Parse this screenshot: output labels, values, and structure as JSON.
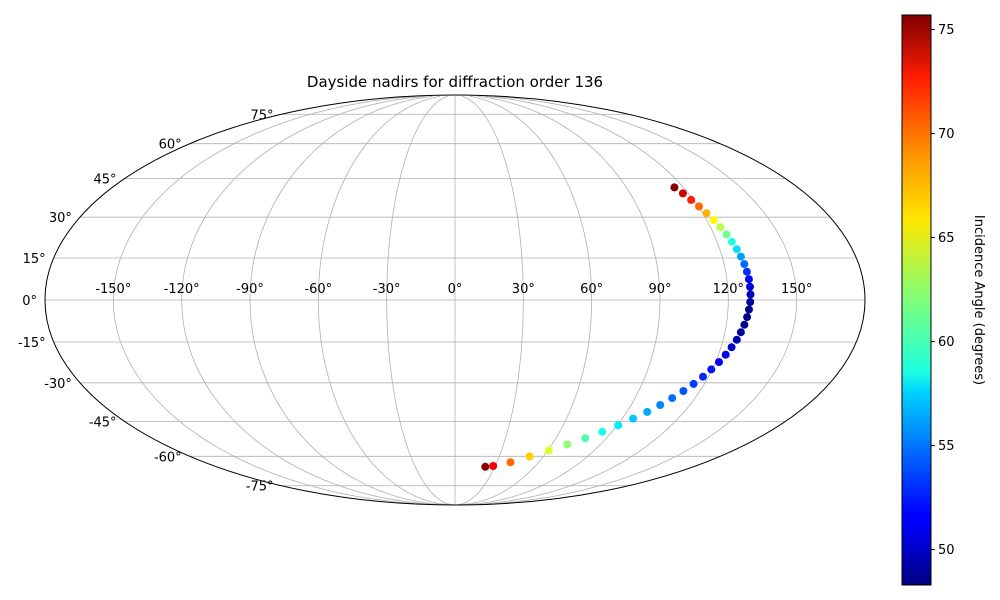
{
  "chart_data": {
    "type": "scatter",
    "projection": "mollweide",
    "title": "Dayside nadirs for diffraction order 136",
    "lon_ticks": [
      "-150°",
      "-120°",
      "-90°",
      "-60°",
      "-30°",
      "0°",
      "30°",
      "60°",
      "90°",
      "120°",
      "150°"
    ],
    "lon_tick_values": [
      -150,
      -120,
      -90,
      -60,
      -30,
      0,
      30,
      60,
      90,
      120,
      150
    ],
    "lat_ticks": [
      "75°",
      "60°",
      "45°",
      "30°",
      "15°",
      "0°",
      "-15°",
      "-30°",
      "-45°",
      "-60°",
      "-75°"
    ],
    "lat_tick_values": [
      75,
      60,
      45,
      30,
      15,
      0,
      -15,
      -30,
      -45,
      -60,
      -75
    ],
    "grid": true,
    "colorbar": {
      "label": "Incidence Angle (degrees)",
      "colormap": "jet",
      "range": [
        48.3,
        75.7
      ],
      "ticks": [
        "50",
        "55",
        "60",
        "65",
        "70",
        "75"
      ],
      "tick_values": [
        50,
        55,
        60,
        65,
        70,
        75
      ]
    },
    "points": {
      "lon": [
        115.3,
        117.1,
        118.8,
        120.4,
        121.9,
        123.3,
        124.6,
        125.8,
        126.8,
        127.7,
        128.4,
        129.0,
        129.4,
        129.7,
        129.8,
        129.8,
        129.6,
        129.2,
        128.7,
        128.0,
        127.1,
        126.1,
        124.8,
        123.3,
        121.6,
        119.6,
        117.4,
        114.8,
        111.9,
        108.6,
        104.9,
        100.7,
        95.9,
        90.5,
        84.4,
        77.4,
        69.5,
        60.6,
        50.7,
        39.9,
        28.6,
        22.9
      ],
      "lat": [
        41.5,
        39.1,
        36.6,
        34.1,
        31.5,
        28.9,
        26.3,
        23.6,
        20.9,
        18.2,
        15.5,
        12.8,
        10.1,
        7.4,
        4.7,
        2.0,
        -0.7,
        -3.4,
        -6.1,
        -8.8,
        -11.5,
        -14.2,
        -16.9,
        -19.6,
        -22.3,
        -25.0,
        -27.7,
        -30.4,
        -33.1,
        -35.8,
        -38.5,
        -41.2,
        -43.9,
        -46.6,
        -49.3,
        -52.0,
        -54.7,
        -57.4,
        -60.1,
        -62.8,
        -64.6,
        -65.0
      ],
      "incidence": [
        75.5,
        73.5,
        71.5,
        69.5,
        67.5,
        65.5,
        63.5,
        61.5,
        59.5,
        57.8,
        56.0,
        54.5,
        53.0,
        51.8,
        50.7,
        49.8,
        49.1,
        48.7,
        48.6,
        48.8,
        49.2,
        49.8,
        50.4,
        51.0,
        51.6,
        52.2,
        52.8,
        53.4,
        54.0,
        54.7,
        55.4,
        56.2,
        57.1,
        58.1,
        59.3,
        60.7,
        62.4,
        64.4,
        66.7,
        69.5,
        72.5,
        75.3
      ]
    }
  }
}
